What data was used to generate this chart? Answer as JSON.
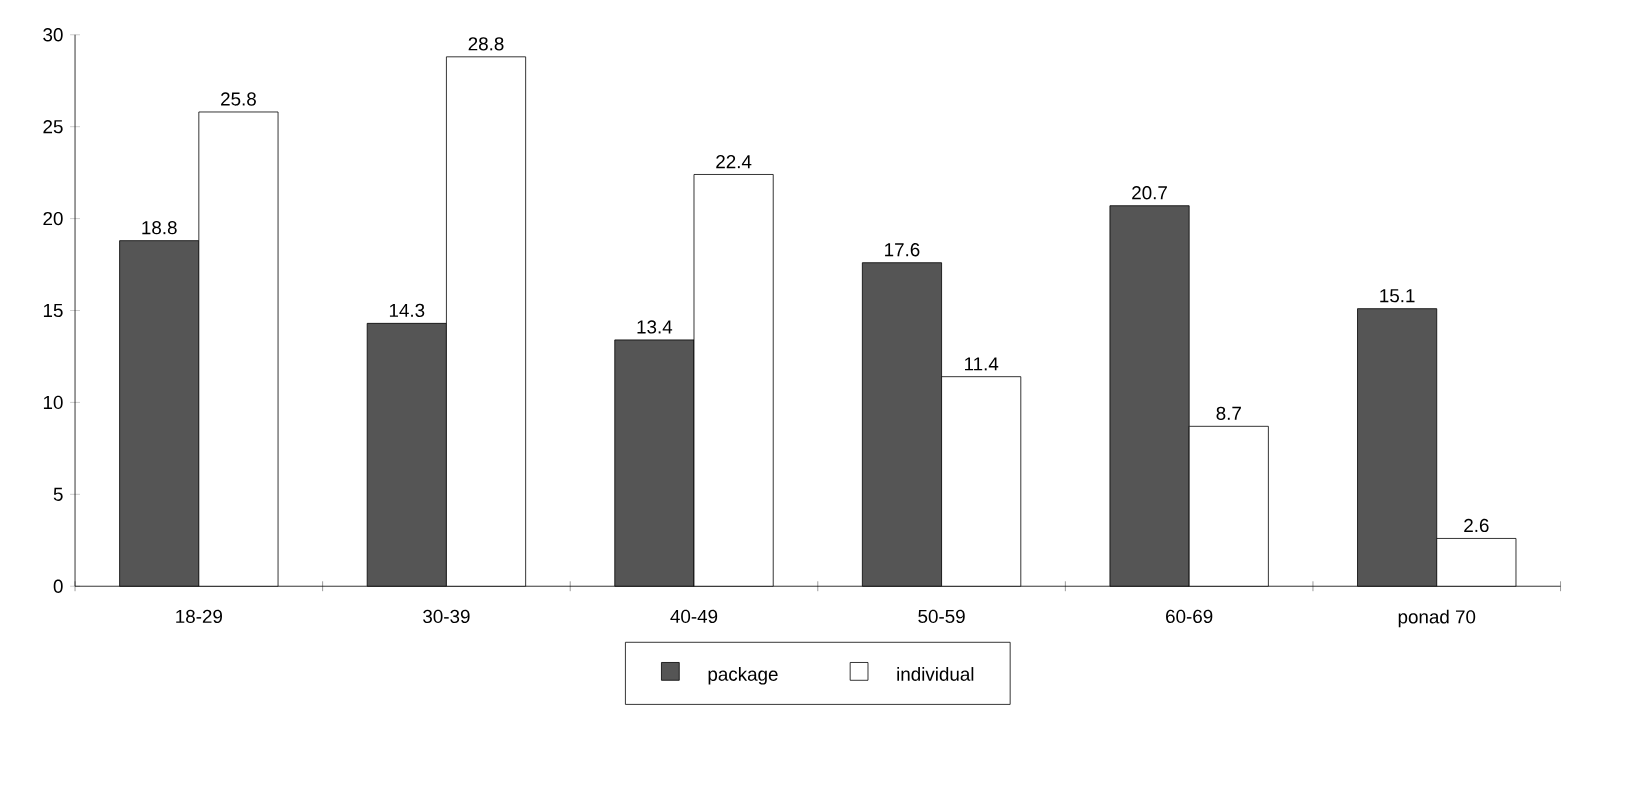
{
  "chart_data": {
    "type": "bar",
    "categories": [
      "18-29",
      "30-39",
      "40-49",
      "50-59",
      "60-69",
      "ponad 70"
    ],
    "series": [
      {
        "name": "package",
        "color": "#555555",
        "values": [
          18.8,
          14.3,
          13.4,
          17.6,
          20.7,
          15.1
        ]
      },
      {
        "name": "individual",
        "color": "#ffffff",
        "values": [
          25.8,
          28.8,
          22.4,
          11.4,
          8.7,
          2.6
        ]
      }
    ],
    "ylim": [
      0,
      30
    ],
    "yticks": [
      0,
      5,
      10,
      15,
      20,
      25,
      30
    ],
    "data_labels": true,
    "grid": false,
    "legend": "bottom"
  }
}
